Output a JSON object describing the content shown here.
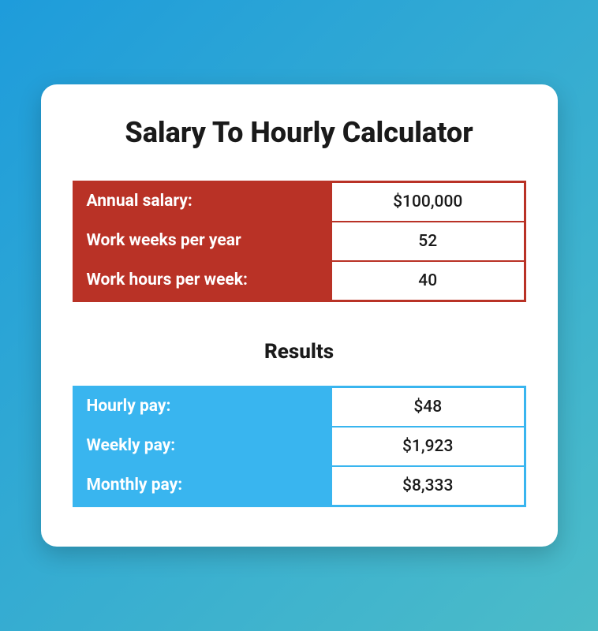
{
  "title": "Salary To Hourly Calculator",
  "inputs": {
    "table_bg_color": "#b93226",
    "border_color": "#b93226",
    "rows": [
      {
        "label": "Annual salary:",
        "value": "$100,000"
      },
      {
        "label": "Work weeks per year",
        "value": "52"
      },
      {
        "label": "Work hours per week:",
        "value": "40"
      }
    ]
  },
  "results": {
    "heading": "Results",
    "table_bg_color": "#39b5ef",
    "border_color": "#39b5ef",
    "rows": [
      {
        "label": "Hourly pay:",
        "value": "$48"
      },
      {
        "label": "Weekly pay:",
        "value": "$1,923"
      },
      {
        "label": "Monthly pay:",
        "value": "$8,333"
      }
    ]
  },
  "card_bg": "#ffffff",
  "page_gradient_start": "#1e9cdb",
  "page_gradient_end": "#4cbcc8"
}
